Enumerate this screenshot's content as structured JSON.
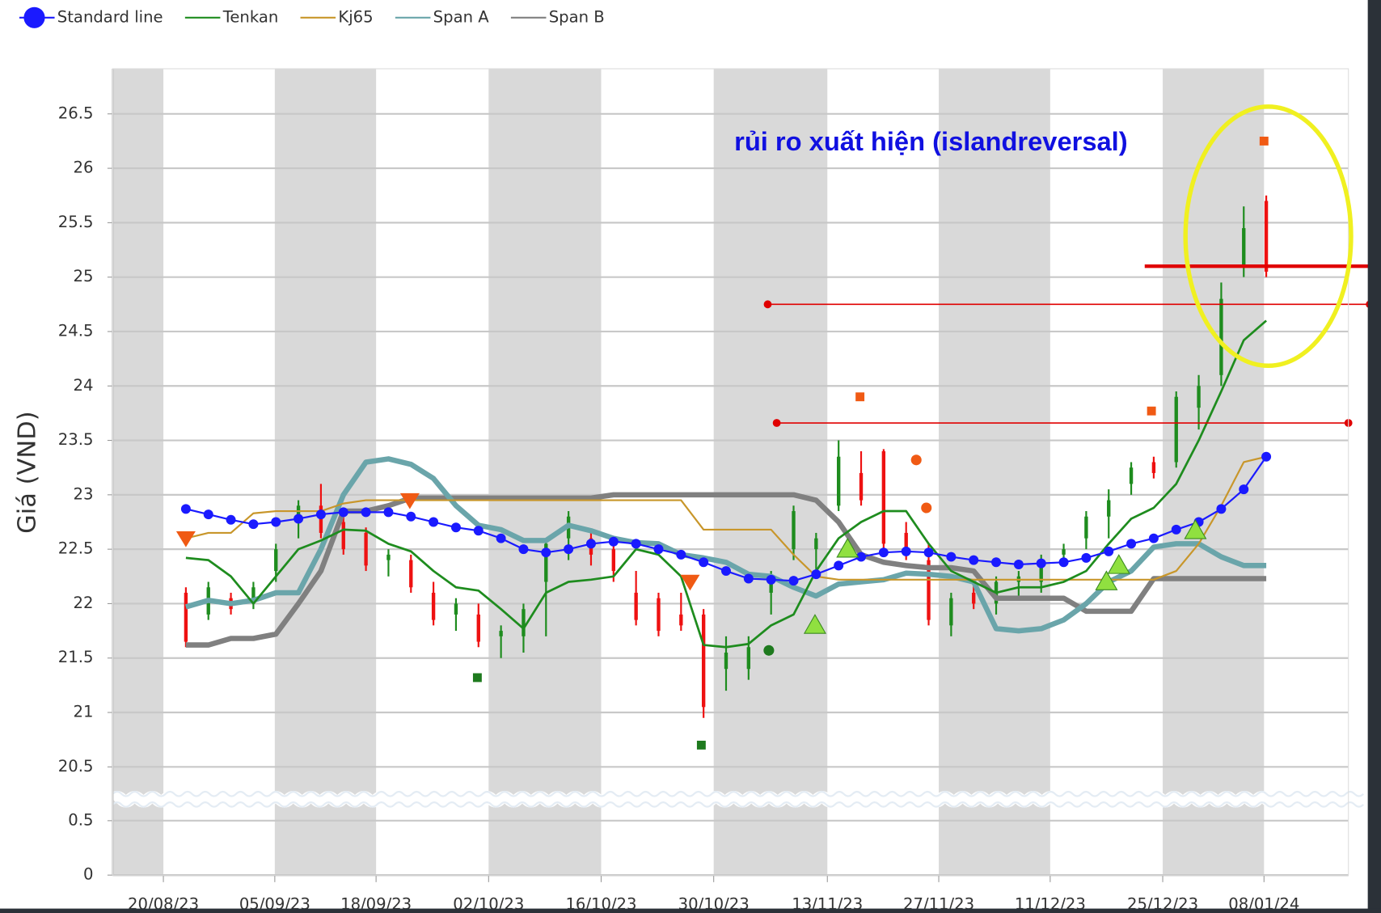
{
  "chart_data": {
    "type": "line",
    "ylabel": "Giá (VND)",
    "annotation": "rủi ro xuất hiện (islandreversal)",
    "xlim": [
      0,
      109.8
    ],
    "xticks": [
      {
        "value": 4.5,
        "label": "20/08/23"
      },
      {
        "value": 14.4,
        "label": "05/09/23"
      },
      {
        "value": 23.4,
        "label": "18/09/23"
      },
      {
        "value": 33.4,
        "label": "02/10/23"
      },
      {
        "value": 43.4,
        "label": "16/10/23"
      },
      {
        "value": 53.4,
        "label": "30/10/23"
      },
      {
        "value": 63.5,
        "label": "13/11/23"
      },
      {
        "value": 73.4,
        "label": "27/11/23"
      },
      {
        "value": 83.3,
        "label": "11/12/23"
      },
      {
        "value": 93.3,
        "label": "25/12/23"
      },
      {
        "value": 102.3,
        "label": "08/01/24"
      }
    ],
    "ylim": [
      0,
      26.92
    ],
    "axis_break": [
      0.6,
      20.3
    ],
    "yticks": [
      0,
      0.5,
      20.5,
      21,
      21.5,
      22,
      22.5,
      23,
      23.5,
      24,
      24.5,
      25,
      25.5,
      26,
      26.5
    ],
    "grid": true,
    "x": [
      6.5,
      8.5,
      10.5,
      12.5,
      14.5,
      16.5,
      18.5,
      20.5,
      22.5,
      24.5,
      26.5,
      28.5,
      30.5,
      32.5,
      34.5,
      36.5,
      38.5,
      40.5,
      42.5,
      44.5,
      46.5,
      48.5,
      50.5,
      52.5,
      54.5,
      56.5,
      58.5,
      60.5,
      62.5,
      64.5,
      66.5,
      68.5,
      70.5,
      72.5,
      74.5,
      76.5,
      78.5,
      80.5,
      82.5,
      84.5,
      86.5,
      88.5,
      90.5,
      92.5,
      94.5,
      96.5,
      98.5,
      100.5,
      102.5
    ],
    "series": [
      {
        "name": "Standard line",
        "color": "#1a1aff",
        "values": [
          22.87,
          22.82,
          22.77,
          22.73,
          22.75,
          22.78,
          22.82,
          22.84,
          22.84,
          22.84,
          22.8,
          22.75,
          22.7,
          22.67,
          22.6,
          22.5,
          22.47,
          22.5,
          22.55,
          22.57,
          22.55,
          22.5,
          22.45,
          22.38,
          22.3,
          22.23,
          22.22,
          22.21,
          22.27,
          22.35,
          22.43,
          22.47,
          22.48,
          22.47,
          22.43,
          22.4,
          22.38,
          22.36,
          22.37,
          22.38,
          22.42,
          22.48,
          22.55,
          22.6,
          22.68,
          22.75,
          22.87,
          23.05,
          23.35
        ]
      },
      {
        "name": "Tenkan",
        "color": "#1e8c1e",
        "values": [
          22.42,
          22.4,
          22.25,
          22.0,
          22.25,
          22.5,
          22.58,
          22.68,
          22.67,
          22.55,
          22.48,
          22.3,
          22.15,
          22.12,
          21.95,
          21.77,
          22.1,
          22.2,
          22.22,
          22.25,
          22.5,
          22.45,
          22.25,
          21.62,
          21.6,
          21.63,
          21.8,
          21.9,
          22.3,
          22.6,
          22.75,
          22.85,
          22.85,
          22.55,
          22.3,
          22.2,
          22.1,
          22.15,
          22.15,
          22.2,
          22.3,
          22.55,
          22.78,
          22.88,
          23.1,
          23.5,
          23.95,
          24.42,
          24.6
        ]
      },
      {
        "name": "Kj65",
        "color": "#c8962a",
        "values": [
          22.6,
          22.65,
          22.65,
          22.83,
          22.85,
          22.85,
          22.85,
          22.92,
          22.95,
          22.95,
          22.95,
          22.95,
          22.95,
          22.95,
          22.95,
          22.95,
          22.95,
          22.95,
          22.95,
          22.95,
          22.95,
          22.95,
          22.95,
          22.68,
          22.68,
          22.68,
          22.68,
          22.45,
          22.25,
          22.22,
          22.22,
          22.22,
          22.22,
          22.22,
          22.22,
          22.22,
          22.22,
          22.22,
          22.22,
          22.22,
          22.22,
          22.22,
          22.22,
          22.22,
          22.3,
          22.55,
          22.9,
          23.3,
          23.35
        ]
      },
      {
        "name": "Span A",
        "color": "#6aa5aa",
        "values": [
          21.97,
          22.03,
          22.0,
          22.03,
          22.1,
          22.1,
          22.5,
          23.0,
          23.3,
          23.33,
          23.28,
          23.15,
          22.9,
          22.72,
          22.68,
          22.58,
          22.58,
          22.72,
          22.67,
          22.6,
          22.56,
          22.55,
          22.45,
          22.42,
          22.38,
          22.27,
          22.25,
          22.15,
          22.07,
          22.18,
          22.2,
          22.22,
          22.28,
          22.27,
          22.25,
          22.2,
          21.77,
          21.75,
          21.77,
          21.85,
          22.0,
          22.2,
          22.3,
          22.52,
          22.55,
          22.55,
          22.43,
          22.35,
          22.35
        ]
      },
      {
        "name": "Span B",
        "color": "#808080",
        "values": [
          21.62,
          21.62,
          21.68,
          21.68,
          21.72,
          22.0,
          22.3,
          22.85,
          22.85,
          22.9,
          22.97,
          22.97,
          22.97,
          22.97,
          22.97,
          22.97,
          22.97,
          22.97,
          22.97,
          23.0,
          23.0,
          23.0,
          23.0,
          23.0,
          23.0,
          23.0,
          23.0,
          23.0,
          22.95,
          22.75,
          22.45,
          22.38,
          22.35,
          22.33,
          22.33,
          22.3,
          22.05,
          22.05,
          22.05,
          22.05,
          21.93,
          21.93,
          21.93,
          22.23,
          22.23,
          22.23,
          22.23,
          22.23,
          22.23
        ]
      }
    ],
    "candles": {
      "up_color": "#1e8c1e",
      "down_color": "#ee1111",
      "open": [
        22.1,
        21.9,
        22.05,
        22.0,
        22.3,
        22.75,
        22.9,
        22.75,
        22.65,
        22.4,
        22.4,
        22.1,
        21.9,
        21.9,
        21.7,
        21.7,
        22.2,
        22.6,
        22.6,
        22.5,
        22.1,
        22.05,
        21.9,
        21.9,
        21.4,
        21.4,
        22.1,
        22.5,
        22.5,
        22.9,
        23.2,
        23.4,
        22.65,
        22.4,
        21.8,
        22.1,
        22.0,
        22.2,
        22.2,
        22.45,
        22.6,
        22.8,
        23.1,
        23.3,
        23.3,
        23.8,
        24.1,
        25.1,
        25.7
      ],
      "high": [
        22.15,
        22.2,
        22.1,
        22.2,
        22.55,
        22.95,
        23.1,
        22.85,
        22.7,
        22.5,
        22.45,
        22.2,
        22.05,
        22.0,
        21.8,
        22.0,
        22.6,
        22.85,
        22.65,
        22.55,
        22.3,
        22.1,
        22.1,
        21.95,
        21.7,
        21.7,
        22.3,
        22.9,
        22.65,
        23.5,
        23.4,
        23.42,
        22.75,
        22.55,
        22.1,
        22.2,
        22.25,
        22.3,
        22.45,
        22.55,
        22.85,
        23.05,
        23.3,
        23.35,
        23.95,
        24.1,
        24.95,
        25.65,
        25.75
      ],
      "low": [
        21.6,
        21.85,
        21.9,
        21.95,
        22.2,
        22.6,
        22.6,
        22.45,
        22.3,
        22.25,
        22.1,
        21.8,
        21.75,
        21.6,
        21.5,
        21.55,
        21.7,
        22.4,
        22.35,
        22.2,
        21.8,
        21.7,
        21.75,
        20.95,
        21.2,
        21.3,
        21.9,
        22.4,
        22.3,
        22.85,
        22.9,
        22.5,
        22.4,
        21.8,
        21.7,
        21.95,
        21.9,
        22.05,
        22.1,
        22.35,
        22.5,
        22.6,
        23.0,
        23.15,
        23.25,
        23.6,
        24.0,
        25.0,
        25.0
      ],
      "close": [
        21.65,
        22.15,
        21.95,
        22.15,
        22.5,
        22.9,
        22.65,
        22.5,
        22.35,
        22.45,
        22.15,
        21.85,
        22.0,
        21.65,
        21.75,
        21.95,
        22.55,
        22.8,
        22.45,
        22.3,
        21.85,
        21.75,
        21.8,
        21.05,
        21.55,
        21.6,
        22.25,
        22.85,
        22.6,
        23.35,
        22.95,
        22.55,
        22.45,
        21.85,
        22.05,
        22.0,
        22.2,
        22.25,
        22.4,
        22.5,
        22.8,
        22.95,
        23.25,
        23.2,
        23.9,
        24.0,
        24.8,
        25.45,
        25.05
      ]
    },
    "markers": [
      {
        "shape": "triangle-down",
        "color": "#f05a14",
        "x": 6.5,
        "y": 22.6
      },
      {
        "shape": "triangle-down",
        "color": "#f05a14",
        "x": 26.4,
        "y": 22.95
      },
      {
        "shape": "triangle-down",
        "color": "#f05a14",
        "x": 51.3,
        "y": 22.2
      },
      {
        "shape": "triangle-up",
        "color": "#90e040",
        "x": 62.4,
        "y": 21.8
      },
      {
        "shape": "triangle-up",
        "color": "#90e040",
        "x": 65.3,
        "y": 22.5
      },
      {
        "shape": "triangle-up",
        "color": "#90e040",
        "x": 88.3,
        "y": 22.2
      },
      {
        "shape": "triangle-up",
        "color": "#90e040",
        "x": 89.4,
        "y": 22.35
      },
      {
        "shape": "triangle-up",
        "color": "#90e040",
        "x": 96.2,
        "y": 22.67
      },
      {
        "shape": "square",
        "color": "#f05a14",
        "x": 66.4,
        "y": 23.9
      },
      {
        "shape": "square",
        "color": "#f05a14",
        "x": 92.3,
        "y": 23.77
      },
      {
        "shape": "square",
        "color": "#f05a14",
        "x": 102.3,
        "y": 26.25
      },
      {
        "shape": "circle",
        "color": "#f05a14",
        "x": 71.4,
        "y": 23.32
      },
      {
        "shape": "circle",
        "color": "#f05a14",
        "x": 72.3,
        "y": 22.88
      },
      {
        "shape": "square",
        "color": "#1e7a1e",
        "x": 32.4,
        "y": 21.32
      },
      {
        "shape": "square",
        "color": "#1e7a1e",
        "x": 52.3,
        "y": 20.7
      },
      {
        "shape": "circle",
        "color": "#1e7a1e",
        "x": 58.3,
        "y": 21.57
      }
    ],
    "hlines": [
      {
        "x": [
          58.2,
          111.7
        ],
        "y": 24.75,
        "color": "#e00000",
        "width": 1.5
      },
      {
        "x": [
          59.0,
          109.8
        ],
        "y": 23.66,
        "color": "#e00000",
        "width": 1.5
      },
      {
        "x": [
          91.7,
          111.7
        ],
        "y": 25.1,
        "color": "#e00000",
        "width": 4
      }
    ]
  }
}
